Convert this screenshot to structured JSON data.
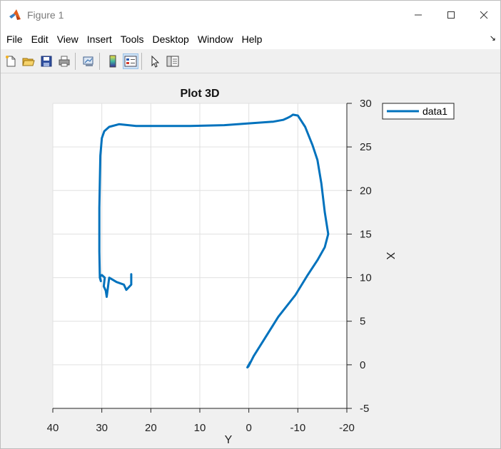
{
  "window": {
    "title": "Figure 1"
  },
  "menu": [
    "File",
    "Edit",
    "View",
    "Insert",
    "Tools",
    "Desktop",
    "Window",
    "Help"
  ],
  "toolbar": [
    "new-figure-icon",
    "open-file-icon",
    "save-icon",
    "print-icon",
    "link-plot-icon",
    "colorbar-icon",
    "legend-icon",
    "pointer-icon",
    "property-inspector-icon"
  ],
  "colors": {
    "line": "#0072bd",
    "grid": "#e0e0e0",
    "axes_bg": "#ffffff",
    "figure_bg": "#f0f0f0"
  },
  "chart_data": {
    "type": "line",
    "title": "Plot 3D",
    "xlabel": "Y",
    "ylabel": "X",
    "xlim": [
      40,
      -20
    ],
    "ylim": [
      -5,
      30
    ],
    "xticks": [
      "40",
      "30",
      "20",
      "10",
      "0",
      "-10",
      "-20"
    ],
    "yticks": [
      "30",
      "25",
      "20",
      "15",
      "10",
      "5",
      "0",
      "-5"
    ],
    "grid": true,
    "legend": {
      "entries": [
        "data1"
      ],
      "placement": "top-right-outside"
    },
    "series": [
      {
        "name": "data1",
        "x": [
          0,
          -0.3,
          0.3,
          -0.2,
          0.1,
          -1,
          -3,
          -6,
          -9.5,
          -12,
          -14,
          -15.5,
          -16.2,
          -15.5,
          -14.8,
          -14,
          -13,
          -11.5,
          -10,
          -9,
          -8.5,
          -7.8,
          -7,
          -5,
          0,
          5,
          12,
          18,
          23,
          26.5,
          28.5,
          29.5,
          30,
          30.3,
          30.4,
          30.5,
          30.5,
          30.4,
          30.2,
          30.4,
          30.0,
          29.4,
          29.6,
          29.2,
          29.0,
          28.5,
          27,
          25.5,
          25,
          24,
          24
        ],
        "y": [
          0,
          0.3,
          -0.3,
          0.2,
          -0.2,
          1,
          2.8,
          5.5,
          8,
          10.3,
          12,
          13.5,
          15,
          17.5,
          20.8,
          23.5,
          25.2,
          27.3,
          28.6,
          28.7,
          28.5,
          28.3,
          28.1,
          27.9,
          27.7,
          27.5,
          27.4,
          27.4,
          27.4,
          27.6,
          27.3,
          26.8,
          26,
          24,
          21,
          18,
          13,
          10,
          9.6,
          10.1,
          10.3,
          10.0,
          9.0,
          8.5,
          7.8,
          10.0,
          9.5,
          9.2,
          8.6,
          9.2,
          10.4
        ]
      }
    ]
  }
}
